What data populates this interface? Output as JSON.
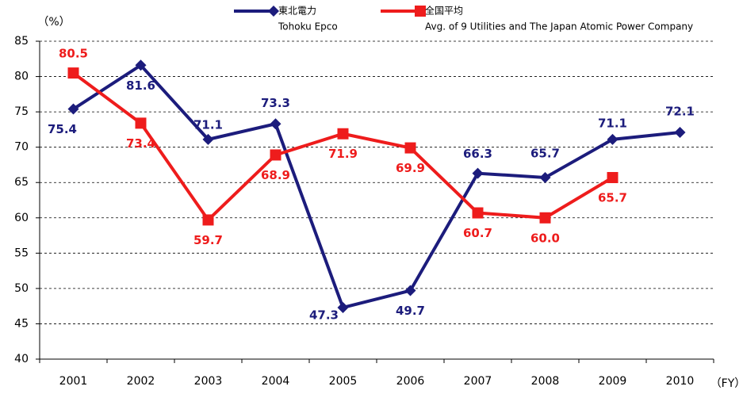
{
  "chart_data": {
    "type": "line",
    "y_label": "（%）",
    "x_label": "（FY）",
    "categories": [
      "2001",
      "2002",
      "2003",
      "2004",
      "2005",
      "2006",
      "2007",
      "2008",
      "2009",
      "2010"
    ],
    "series": [
      {
        "name": "東北電力",
        "subtitle": "Tohoku Epco",
        "color": "#1c1c7c",
        "marker": "diamond",
        "values": [
          75.4,
          81.6,
          71.1,
          73.3,
          47.3,
          49.7,
          66.3,
          65.7,
          71.1,
          72.1
        ],
        "value_labels": [
          "75.4",
          "81.6",
          "71.1",
          "73.3",
          "47.3",
          "49.7",
          "66.3",
          "65.7",
          "71.1",
          "72.1"
        ]
      },
      {
        "name": "全国平均",
        "subtitle": "Avg. of 9 Utilities and The Japan Atomic Power Company",
        "color": "#ee1c1c",
        "marker": "square",
        "values": [
          80.5,
          73.4,
          59.7,
          68.9,
          71.9,
          69.9,
          60.7,
          60.0,
          65.7,
          null
        ],
        "value_labels": [
          "80.5",
          "73.4",
          "59.7",
          "68.9",
          "71.9",
          "69.9",
          "60.7",
          "60.0",
          "65.7",
          null
        ]
      }
    ],
    "ylim": [
      40,
      85
    ],
    "yticks": [
      40,
      45,
      50,
      55,
      60,
      65,
      70,
      75,
      80,
      85
    ],
    "grid": true
  }
}
